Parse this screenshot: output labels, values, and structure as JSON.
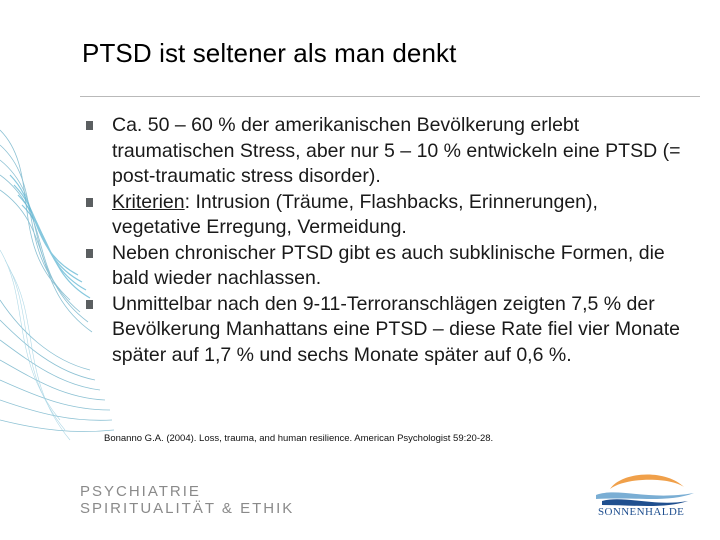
{
  "slide": {
    "title": "PTSD ist seltener als man denkt",
    "bullets": [
      {
        "text": "Ca. 50 – 60 % der amerikanischen Bevölkerung erlebt traumatischen Stress, aber nur 5 – 10 % entwickeln eine PTSD (= post-traumatic stress disorder)."
      },
      {
        "prefix": "Kriterien",
        "text": ": Intrusion (Träume, Flashbacks, Erinnerungen), vegetative Erregung, Vermeidung."
      },
      {
        "text": "Neben chronischer PTSD gibt es auch subklinische Formen, die bald wieder nachlassen."
      },
      {
        "text": "Unmittelbar nach den 9-11-Terroranschlägen zeigten 7,5 % der Bevölkerung Manhattans eine PTSD – diese Rate fiel vier Monate später auf 1,7 % und sechs Monate später auf 0,6 %."
      }
    ],
    "citation": "Bonanno G.A. (2004). Loss, trauma, and human resilience. American Psychologist 59:20-28."
  },
  "footer": {
    "line1": "PSYCHIATRIE",
    "line2": "SPIRITUALITÄT & ETHIK",
    "logo_text": "SONNENHALDE"
  },
  "colors": {
    "decoration": "#2f8fb0",
    "bullet": "#5b5f61",
    "logo_orange": "#f0a04a",
    "logo_blue": "#1f4f8f"
  }
}
